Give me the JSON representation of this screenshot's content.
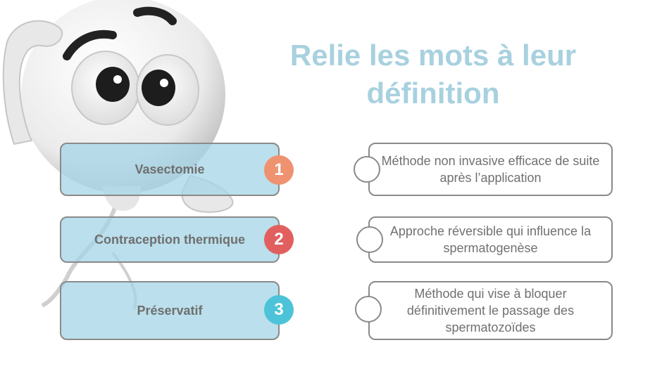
{
  "title": "Relie les mots à leur définition",
  "words": [
    {
      "label": "Vasectomie",
      "number": "1",
      "color": "#ef9270"
    },
    {
      "label": "Contraception thermique",
      "number": "2",
      "color": "#e1605f"
    },
    {
      "label": "Préservatif",
      "number": "3",
      "color": "#4cc3d8"
    }
  ],
  "definitions": [
    {
      "text": "Méthode non invasive efficace de suite après l’application"
    },
    {
      "text": "Approche réversible qui influence la spermatogenèse"
    },
    {
      "text": "Méthode qui vise à bloquer définitivement le passage des spermatozoïdes"
    }
  ],
  "colors": {
    "title": "#a8d1df",
    "box_fill": "#a4d4e6",
    "border": "#8a8a8a"
  }
}
